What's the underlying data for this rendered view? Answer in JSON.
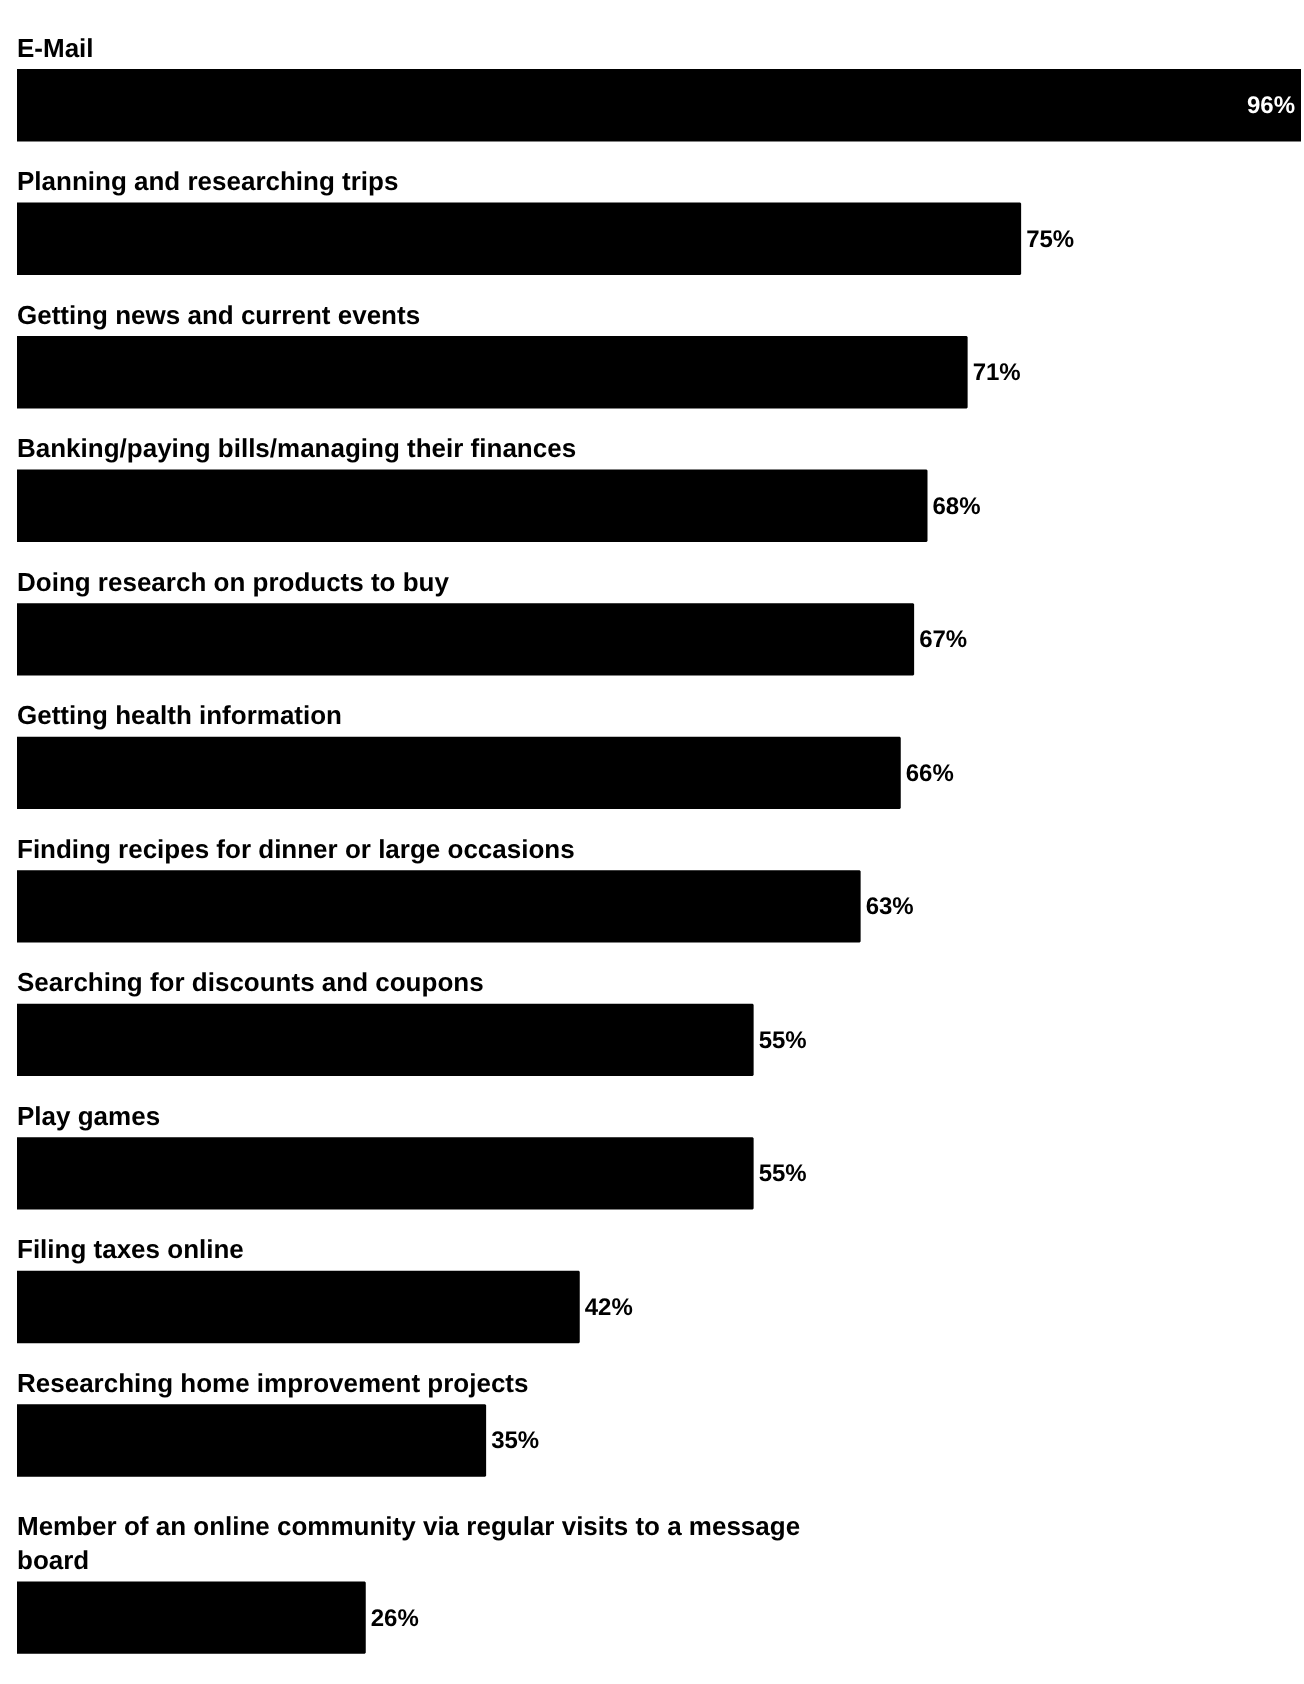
{
  "chart_data": {
    "type": "bar",
    "orientation": "horizontal",
    "tick_labels": false,
    "grid": false,
    "value_labels": [
      "96%",
      "75%",
      "71%",
      "68%",
      "67%",
      "66%",
      "63%",
      "55%",
      "55%",
      "42%",
      "35%",
      "26%"
    ],
    "categories": [
      "E-Mail",
      "Planning and researching trips",
      "Getting news and current events",
      "Banking/paying bills/managing their finances",
      "Doing research on products to buy",
      "Getting health information",
      "Finding recipes for dinner or large occasions",
      "Searching for discounts and coupons",
      "Play games",
      "Filing taxes online",
      "Researching home improvement projects",
      "Member of an online community via regular visits to a message board"
    ],
    "values": [
      96,
      75,
      71,
      68,
      67,
      66,
      63,
      55,
      55,
      42,
      35,
      26
    ],
    "color": "#000000"
  }
}
